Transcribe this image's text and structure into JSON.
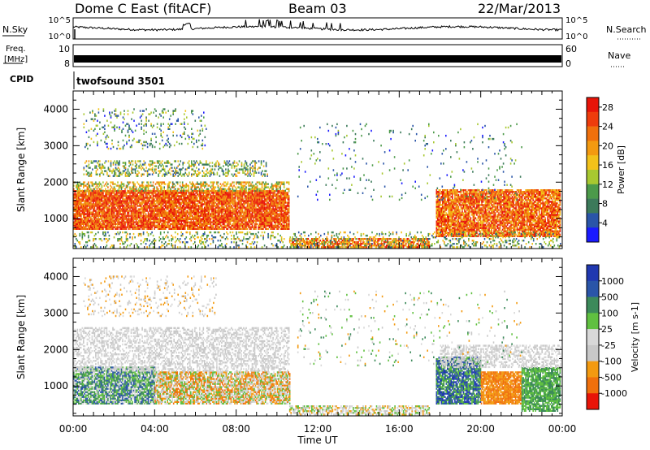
{
  "header": {
    "station": "Dome C East (fitACF)",
    "beam": "Beam 03",
    "date": "22/Mar/2013"
  },
  "panels": {
    "nsky": {
      "label": "N.Sky",
      "top_tick": "10^5",
      "bottom_tick": "10^0",
      "right_label": "N.Search"
    },
    "freq": {
      "label_line1": "Freq.",
      "label_line2": "[MHz]",
      "left_ticks": [
        "10",
        "8"
      ],
      "right_ticks": [
        "60",
        "0"
      ],
      "right_label": "Nave"
    },
    "cpid": {
      "label": "CPID",
      "program": "twofsound 3501"
    }
  },
  "time_axis": {
    "label": "Time UT",
    "ticks": [
      "00:00",
      "04:00",
      "08:00",
      "12:00",
      "16:00",
      "20:00",
      "00:00"
    ]
  },
  "colors": {
    "power_scale": [
      "#1a1aff",
      "#2a55a8",
      "#3c7a5a",
      "#4c9a4a",
      "#a8c830",
      "#f2c21a",
      "#f39a10",
      "#f0700c",
      "#ee3c0c",
      "#e81408"
    ],
    "velocity_scale": [
      "#e81408",
      "#f0700c",
      "#f39a10",
      "#c8c8c8",
      "#d8d8d8",
      "#60c040",
      "#3c8a5a",
      "#2a55a8",
      "#2038b0"
    ]
  },
  "chart_data": [
    {
      "type": "heatmap",
      "name": "Power",
      "ylabel": "Slant Range [km]",
      "xlabel": "",
      "x_range_hours": [
        0,
        24
      ],
      "ylim": [
        180,
        4500
      ],
      "yticks": [
        1000,
        2000,
        3000,
        4000
      ],
      "colorbar": {
        "label": "Power [dB]",
        "ticks": [
          4,
          8,
          12,
          16,
          20,
          24,
          28
        ],
        "range": [
          0,
          30
        ]
      },
      "regions": [
        {
          "t0": 0.0,
          "t1": 10.6,
          "r0": 700,
          "r1": 1750,
          "v0": 18,
          "v1": 30,
          "density": 0.9
        },
        {
          "t0": 0.0,
          "t1": 10.6,
          "r0": 1750,
          "r1": 2000,
          "v0": 8,
          "v1": 24,
          "density": 0.5
        },
        {
          "t0": 0.5,
          "t1": 9.5,
          "r0": 2150,
          "r1": 2600,
          "v0": 4,
          "v1": 20,
          "density": 0.35
        },
        {
          "t0": 0.5,
          "t1": 6.5,
          "r0": 2900,
          "r1": 4000,
          "v0": 2,
          "v1": 16,
          "density": 0.12
        },
        {
          "t0": 10.6,
          "t1": 17.5,
          "r0": 200,
          "r1": 450,
          "v0": 14,
          "v1": 30,
          "density": 0.7
        },
        {
          "t0": 17.8,
          "t1": 23.9,
          "r0": 500,
          "r1": 1800,
          "v0": 16,
          "v1": 30,
          "density": 0.85
        },
        {
          "t0": 11.0,
          "t1": 22.0,
          "r0": 1500,
          "r1": 3600,
          "v0": 2,
          "v1": 14,
          "density": 0.03
        },
        {
          "t0": 0.0,
          "t1": 23.9,
          "r0": 200,
          "r1": 650,
          "v0": 4,
          "v1": 20,
          "density": 0.22
        }
      ]
    },
    {
      "type": "heatmap",
      "name": "Velocity",
      "ylabel": "Slant Range [km]",
      "xlabel": "Time UT",
      "x_range_hours": [
        0,
        24
      ],
      "ylim": [
        180,
        4500
      ],
      "yticks": [
        1000,
        2000,
        3000,
        4000
      ],
      "colorbar": {
        "label": "Velocity [m s-1]",
        "ticks": [
          1000,
          500,
          100,
          25,
          -25,
          -100,
          -500,
          -1000
        ]
      },
      "regions": [
        {
          "t0": 0.0,
          "t1": 4.0,
          "r0": 500,
          "r1": 1500,
          "v0": 4,
          "v1": 8,
          "density": 0.85
        },
        {
          "t0": 4.0,
          "t1": 10.6,
          "r0": 500,
          "r1": 1400,
          "v0": 1,
          "v1": 6,
          "density": 0.8
        },
        {
          "t0": 0.0,
          "t1": 10.6,
          "r0": 1400,
          "r1": 2600,
          "v0": 3,
          "v1": 5,
          "density": 0.45
        },
        {
          "t0": 0.5,
          "t1": 7.0,
          "r0": 2900,
          "r1": 4000,
          "v0": 2,
          "v1": 5,
          "density": 0.12
        },
        {
          "t0": 10.6,
          "t1": 17.5,
          "r0": 200,
          "r1": 450,
          "v0": 2,
          "v1": 6,
          "density": 0.6
        },
        {
          "t0": 17.8,
          "t1": 20.0,
          "r0": 500,
          "r1": 1800,
          "v0": 5,
          "v1": 9,
          "density": 0.85
        },
        {
          "t0": 20.0,
          "t1": 22.0,
          "r0": 500,
          "r1": 1400,
          "v0": 1,
          "v1": 3,
          "density": 0.85
        },
        {
          "t0": 22.0,
          "t1": 23.9,
          "r0": 300,
          "r1": 1500,
          "v0": 5,
          "v1": 7,
          "density": 0.8
        },
        {
          "t0": 18.0,
          "t1": 23.9,
          "r0": 1500,
          "r1": 2100,
          "v0": 3,
          "v1": 5,
          "density": 0.5
        },
        {
          "t0": 11.0,
          "t1": 22.0,
          "r0": 1500,
          "r1": 3600,
          "v0": 2,
          "v1": 7,
          "density": 0.03
        }
      ]
    }
  ]
}
